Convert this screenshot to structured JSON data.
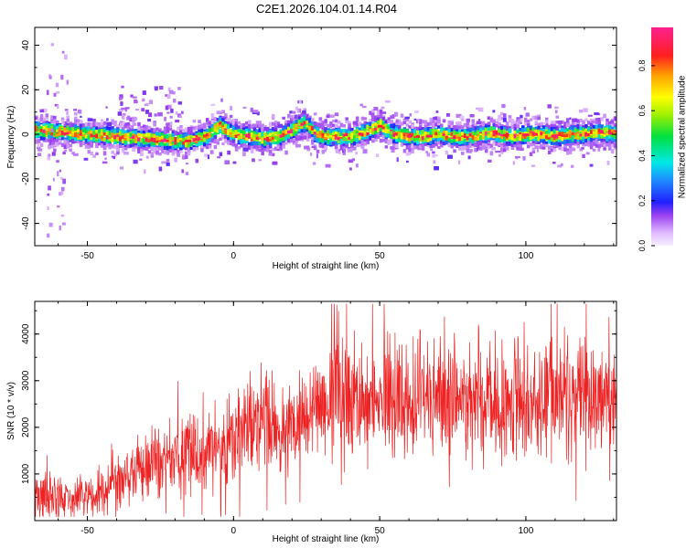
{
  "page_title": "C2E1.2026.104.01.14.R04",
  "colors": {
    "snr_line": "#ee2222",
    "axis": "#000000",
    "background": "#ffffff"
  },
  "chart_data": [
    {
      "id": "spectrogram",
      "type": "heatmap",
      "xlabel": "Height of straight line (km)",
      "ylabel": "Frequency (Hz)",
      "xlim": [
        -68,
        131
      ],
      "ylim": [
        -50,
        48
      ],
      "x_ticks": [
        -50,
        0,
        50,
        100
      ],
      "x_tick_labels": [
        "-50",
        "0",
        "50",
        "100"
      ],
      "y_ticks": [
        -40,
        -20,
        0,
        20,
        40
      ],
      "y_tick_labels": [
        "-40",
        "-20",
        "0",
        "20",
        "40"
      ],
      "colorbar": {
        "label": "Normalized spectral amplitude",
        "range": [
          0,
          0.97
        ],
        "ticks": [
          0.0,
          0.2,
          0.4,
          0.6,
          0.8
        ],
        "tick_labels": [
          "0.0",
          "0.2",
          "0.4",
          "0.6",
          "0.8"
        ]
      },
      "ridge": {
        "x": [
          -68,
          -60,
          -50,
          -40,
          -30,
          -20,
          -15,
          -10,
          -7,
          -5,
          -3,
          0,
          5,
          10,
          15,
          20,
          22,
          24,
          26,
          28,
          30,
          35,
          40,
          45,
          48,
          50,
          52,
          55,
          60,
          65,
          70,
          75,
          80,
          85,
          88,
          90,
          95,
          100,
          105,
          110,
          115,
          120,
          125,
          131
        ],
        "y": [
          2,
          1,
          0,
          -1,
          -2,
          -3,
          -3,
          -1,
          2,
          4,
          2,
          0,
          -1,
          -2,
          -1,
          2,
          4,
          5,
          3,
          0,
          -1,
          -1,
          -1,
          1,
          3,
          4,
          2,
          0,
          -1,
          -1,
          0,
          -1,
          -1,
          0,
          1,
          0,
          -1,
          0,
          0,
          -1,
          0,
          0,
          1,
          0
        ]
      }
    },
    {
      "id": "snr",
      "type": "line",
      "xlabel": "Height of straight line (km)",
      "ylabel": "SNR (10 * v/v)",
      "xlim": [
        -68,
        131
      ],
      "ylim": [
        0,
        4700
      ],
      "x_ticks": [
        -50,
        0,
        50,
        100
      ],
      "x_tick_labels": [
        "-50",
        "0",
        "50",
        "100"
      ],
      "y_ticks": [
        1000,
        2000,
        3000,
        4000
      ],
      "y_tick_labels": [
        "1000",
        "2000",
        "3000",
        "4000"
      ],
      "envelope": {
        "x": [
          -68,
          -60,
          -50,
          -45,
          -40,
          -35,
          -30,
          -25,
          -20,
          -15,
          -10,
          -5,
          0,
          5,
          10,
          15,
          20,
          25,
          30,
          35,
          40,
          45,
          50,
          55,
          60,
          65,
          70,
          75,
          80,
          85,
          90,
          95,
          100,
          105,
          110,
          115,
          120,
          125,
          131
        ],
        "y": [
          600,
          450,
          500,
          650,
          800,
          1000,
          1100,
          1250,
          1350,
          1450,
          1500,
          1600,
          1750,
          1900,
          2000,
          1900,
          2000,
          2200,
          2600,
          2800,
          2700,
          2650,
          2750,
          2600,
          2500,
          2550,
          2700,
          2600,
          2500,
          2400,
          2500,
          2600,
          2650,
          2600,
          2650,
          2700,
          2650,
          2700,
          2750
        ]
      }
    }
  ]
}
